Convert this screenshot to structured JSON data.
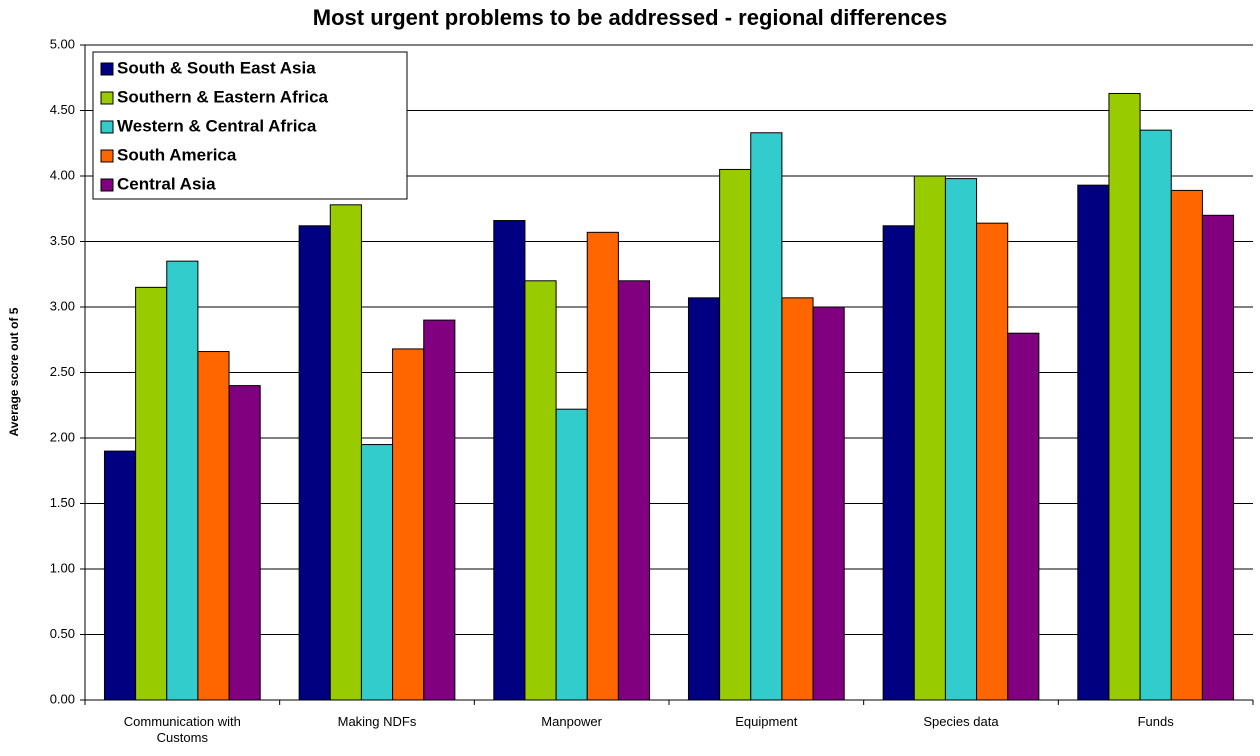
{
  "chart_data": {
    "type": "bar",
    "title": "Most urgent problems to be addressed - regional differences",
    "y_label": "Average score out of 5",
    "categories": [
      "Communication with Customs",
      "Making NDFs",
      "Manpower",
      "Equipment",
      "Species data",
      "Funds"
    ],
    "series": [
      {
        "name": "South & South East Asia",
        "color": "#000080",
        "values": [
          1.9,
          3.62,
          3.66,
          3.07,
          3.62,
          3.93
        ]
      },
      {
        "name": "Southern & Eastern Africa",
        "color": "#99cc00",
        "values": [
          3.15,
          3.78,
          3.2,
          4.05,
          4.0,
          4.63
        ]
      },
      {
        "name": "Western & Central Africa",
        "color": "#33cccc",
        "values": [
          3.35,
          1.95,
          2.22,
          4.33,
          3.98,
          4.35
        ]
      },
      {
        "name": "South America",
        "color": "#ff6600",
        "values": [
          2.66,
          2.68,
          3.57,
          3.07,
          3.64,
          3.89
        ]
      },
      {
        "name": "Central Asia",
        "color": "#800080",
        "values": [
          2.4,
          2.9,
          3.2,
          3.0,
          2.8,
          3.7
        ]
      }
    ],
    "ylim": [
      0,
      5
    ],
    "yticks": [
      {
        "value": 0,
        "label": "0.00"
      },
      {
        "value": 0.5,
        "label": "0.50"
      },
      {
        "value": 1,
        "label": "1.00"
      },
      {
        "value": 1.5,
        "label": "1.50"
      },
      {
        "value": 2,
        "label": "2.00"
      },
      {
        "value": 2.5,
        "label": "2.50"
      },
      {
        "value": 3,
        "label": "3.00"
      },
      {
        "value": 3.5,
        "label": "3.50"
      },
      {
        "value": 4,
        "label": "4.00"
      },
      {
        "value": 4.5,
        "label": "4.50"
      },
      {
        "value": 5,
        "label": "5.00"
      }
    ],
    "grid": true,
    "legend": "top-left"
  }
}
